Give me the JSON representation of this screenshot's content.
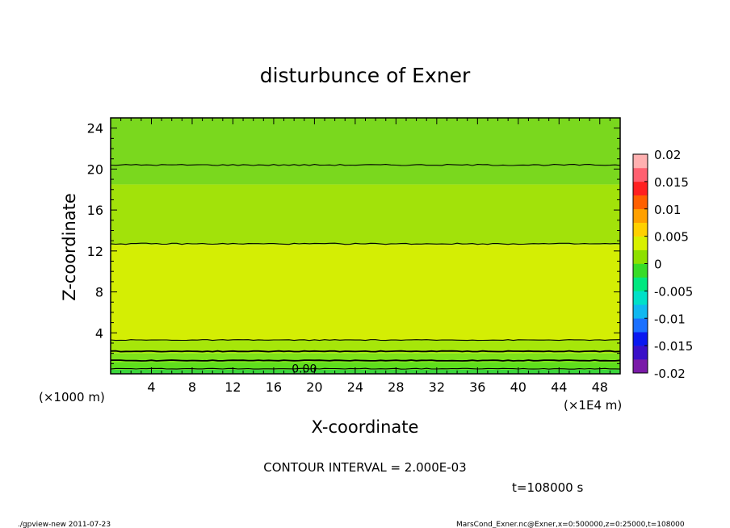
{
  "chart_data": {
    "type": "heatmap",
    "title": "disturbunce of Exner",
    "xlabel": "X-coordinate",
    "ylabel": "Z-coordinate",
    "x_unit_left": "(×1000 m)",
    "x_unit_right": "(×1E4 m)",
    "xlim": [
      0,
      50
    ],
    "ylim": [
      0,
      25
    ],
    "x_ticks": [
      4,
      8,
      12,
      16,
      20,
      24,
      28,
      32,
      36,
      40,
      44,
      48
    ],
    "y_ticks": [
      4,
      8,
      12,
      16,
      20,
      24
    ],
    "colorbar": {
      "min": -0.02,
      "max": 0.02,
      "tick_labels": [
        "0.02",
        "0.015",
        "0.01",
        "0.005",
        "0",
        "-0.005",
        "-0.01",
        "-0.015",
        "-0.02"
      ],
      "colors": [
        "#7a1aa8",
        "#3a10c8",
        "#0a18f0",
        "#1a70ff",
        "#10b8f0",
        "#00e0c8",
        "#00e880",
        "#38dc28",
        "#8ee000",
        "#d8f000",
        "#ffd000",
        "#ffa000",
        "#ff6000",
        "#ff2020",
        "#ff6070",
        "#ffb0b0"
      ]
    },
    "bands": [
      {
        "z0": 0.0,
        "z1": 0.4,
        "value": -0.002,
        "color": "#3cd63c"
      },
      {
        "z0": 0.4,
        "z1": 1.1,
        "value": 0.0,
        "color": "#5ede1c"
      },
      {
        "z0": 1.1,
        "z1": 2.0,
        "value": 0.001,
        "color": "#7ee21a"
      },
      {
        "z0": 2.0,
        "z1": 3.3,
        "value": 0.002,
        "color": "#a6e60a"
      },
      {
        "z0": 3.3,
        "z1": 12.6,
        "value": 0.004,
        "color": "#d4ee04"
      },
      {
        "z0": 12.6,
        "z1": 18.5,
        "value": 0.003,
        "color": "#a2e20a"
      },
      {
        "z0": 18.5,
        "z1": 25.0,
        "value": 0.001,
        "color": "#7ad81e"
      }
    ],
    "contours": [
      {
        "label": "0.00",
        "z": 0.5
      },
      {
        "label": "",
        "z": 1.3
      },
      {
        "label": "",
        "z": 2.2
      },
      {
        "label": "",
        "z": 3.3
      },
      {
        "label": "",
        "z": 12.7
      },
      {
        "label": "",
        "z": 20.4
      }
    ],
    "contour_interval_text": "CONTOUR INTERVAL = 2.000E-03",
    "time_text": "t=108000 s"
  },
  "footer": {
    "left": "./gpview-new   2011-07-23",
    "right": "MarsCond_Exner.nc@Exner,x=0:500000,z=0:25000,t=108000"
  }
}
